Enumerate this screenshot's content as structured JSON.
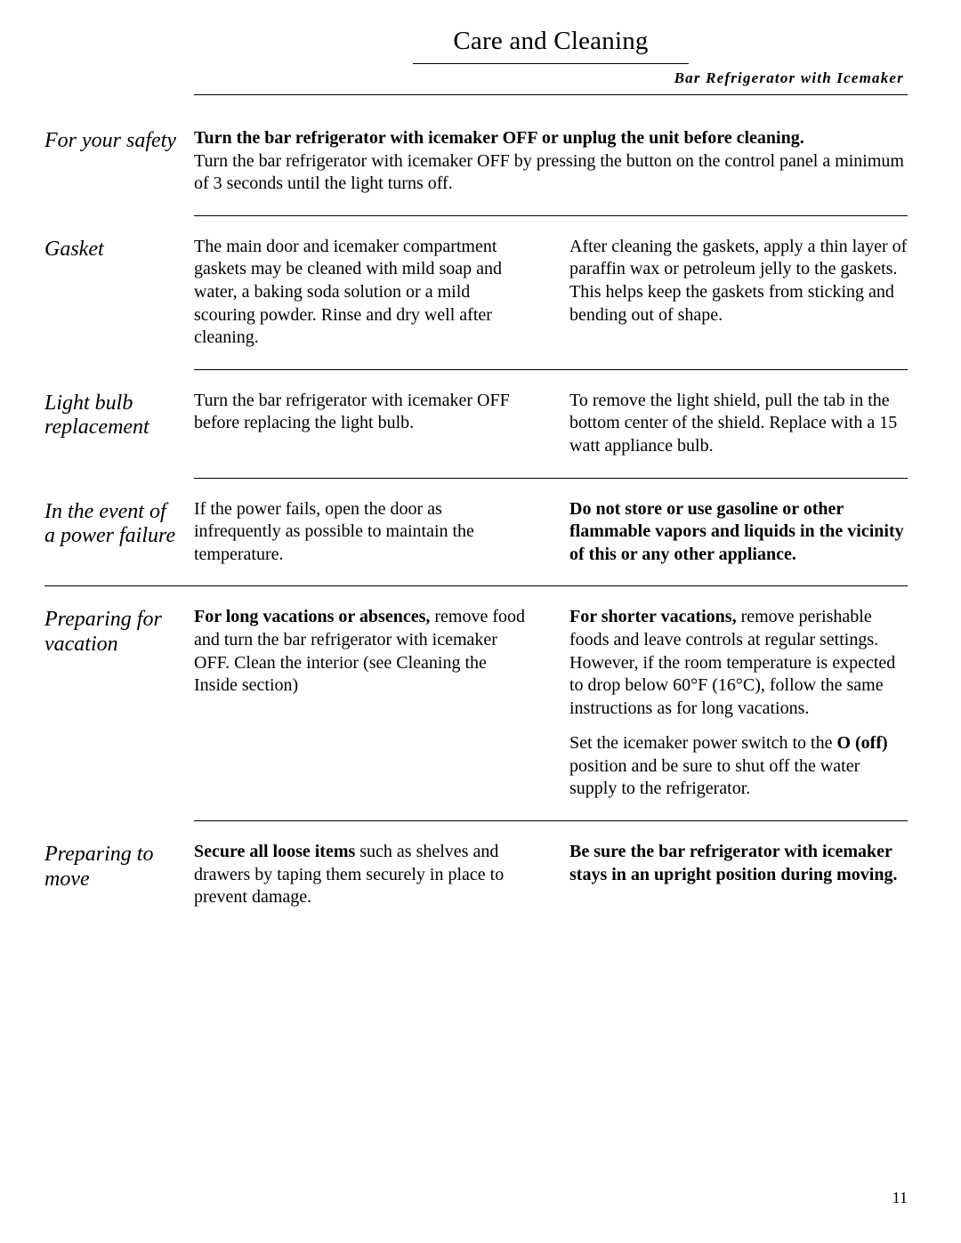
{
  "header": {
    "title": "Care and Cleaning",
    "subtitle": "Bar Refrigerator with Icemaker"
  },
  "sections": {
    "safety": {
      "label": "For your safety",
      "bold_line": "Turn the bar refrigerator with icemaker OFF or unplug the unit before cleaning.",
      "rest": "Turn the bar refrigerator with icemaker OFF by pressing the button on the control panel a minimum of 3 seconds until the light turns off."
    },
    "gasket": {
      "label": "Gasket",
      "left": "The main door and icemaker compartment gaskets may be cleaned with mild soap and water, a baking soda solution or a mild scouring powder. Rinse and dry well after cleaning.",
      "right": "After cleaning the gaskets, apply a thin layer of paraffin wax or petroleum jelly to the gaskets. This helps keep the gaskets from sticking and bending out of shape."
    },
    "lightbulb": {
      "label": "Light bulb replacement",
      "left": "Turn the bar refrigerator with icemaker OFF before replacing the light bulb.",
      "right": "To remove the light shield, pull the tab in the bottom center of the shield. Replace with a 15 watt appliance bulb."
    },
    "powerfail": {
      "label": "In the event of a power failure",
      "left": "If the power fails, open the door as infrequently as possible to maintain the temperature.",
      "right_bold": "Do not store or use gasoline or other flammable vapors and liquids in the vicinity of this or any other appliance."
    },
    "vacation": {
      "label": "Preparing for vacation",
      "left_bold": "For long vacations or absences,",
      "left_rest": " remove food and turn the bar refrigerator with icemaker OFF. Clean the interior (see Cleaning the Inside section)",
      "right_p1_bold": "For shorter vacations,",
      "right_p1_rest": " remove perishable foods and leave controls at regular settings. However, if the room temperature is expected to drop below 60°F (16°C), follow the same instructions as for long vacations.",
      "right_p2_a": "Set the icemaker power switch to the ",
      "right_p2_b": "O (off)",
      "right_p2_c": " position and be sure to shut off the water supply to the refrigerator."
    },
    "move": {
      "label": "Preparing to move",
      "left_bold": "Secure all loose items",
      "left_rest": " such as shelves and drawers by taping them securely in place to prevent damage.",
      "right_bold": "Be sure the bar refrigerator with icemaker stays in an upright position during moving."
    }
  },
  "page_number": "11"
}
